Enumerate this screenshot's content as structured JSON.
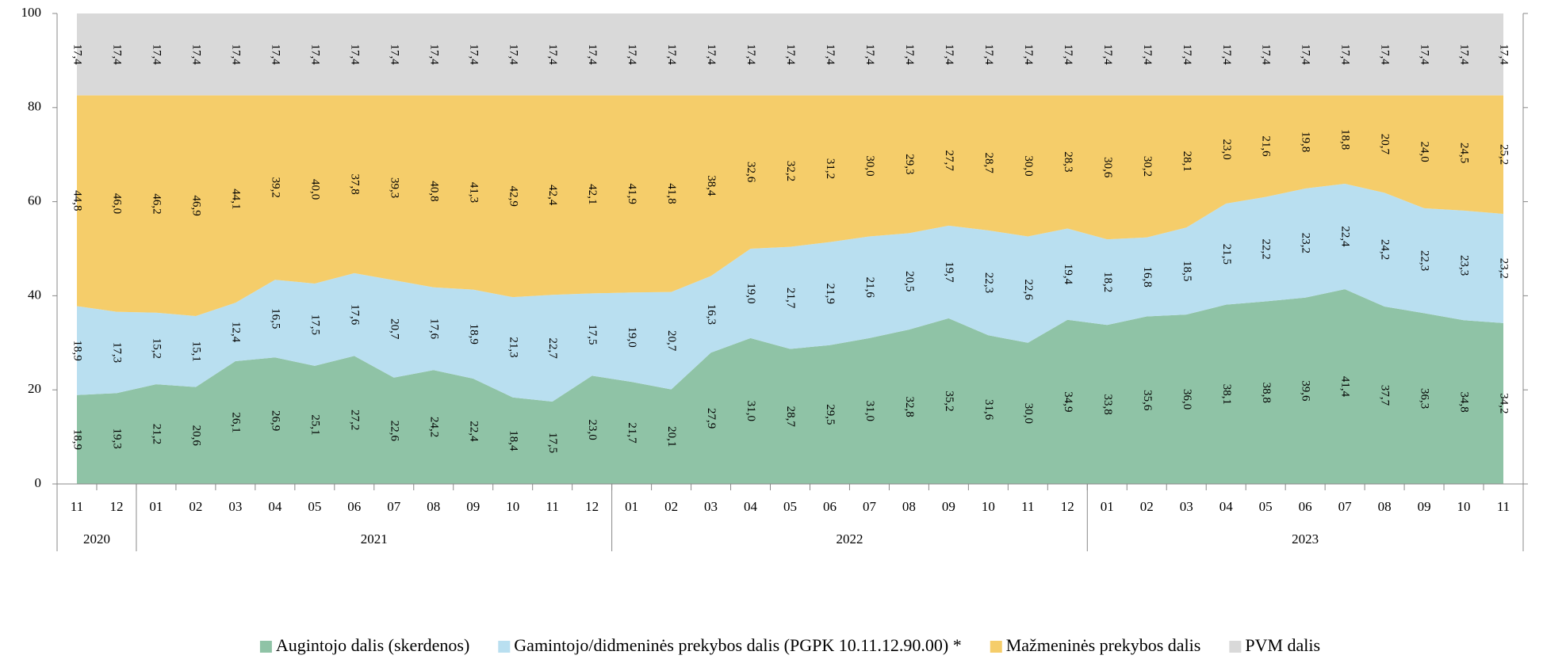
{
  "chart_data": {
    "type": "stacked_area",
    "categories": [
      "11",
      "12",
      "01",
      "02",
      "03",
      "04",
      "05",
      "06",
      "07",
      "08",
      "09",
      "10",
      "11",
      "12",
      "01",
      "02",
      "03",
      "04",
      "05",
      "06",
      "07",
      "08",
      "09",
      "10",
      "11",
      "12",
      "01",
      "02",
      "03",
      "04",
      "05",
      "06",
      "07",
      "08",
      "09",
      "10",
      "11"
    ],
    "groups": [
      "2020",
      "2021",
      "2022",
      "2023"
    ],
    "ylim": [
      0,
      100
    ],
    "yticks": [
      0,
      20,
      40,
      60,
      80,
      100
    ],
    "series": [
      {
        "name": "Augintojo dalis (skerdenos)",
        "color": "#8fc3a6",
        "values": [
          18.9,
          19.3,
          21.2,
          20.6,
          26.1,
          26.9,
          25.1,
          27.2,
          22.6,
          24.2,
          22.4,
          18.4,
          17.5,
          23.0,
          21.7,
          20.1,
          27.9,
          31.0,
          28.7,
          29.5,
          31.0,
          32.8,
          35.2,
          31.6,
          30.0,
          34.9,
          33.8,
          35.6,
          36.0,
          38.1,
          38.8,
          39.6,
          41.4,
          37.7,
          36.3,
          34.8,
          34.2
        ],
        "value_labels": [
          "18,9",
          "19,3",
          "21,2",
          "20,6",
          "26,1",
          "26,9",
          "25,1",
          "27,2",
          "22,6",
          "24,2",
          "22,4",
          "18,4",
          "17,5",
          "23,0",
          "21,7",
          "20,1",
          "27,9",
          "31,0",
          "28,7",
          "29,5",
          "31,0",
          "32,8",
          "35,2",
          "31,6",
          "30,0",
          "34,9",
          "33,8",
          "35,6",
          "36,0",
          "38,1",
          "38,8",
          "39,6",
          "41,4",
          "37,7",
          "36,3",
          "34,8",
          "34,2"
        ]
      },
      {
        "name": "Gamintojo/didmeninės prekybos dalis (PGPK 10.11.12.90.00) *",
        "color": "#b9dff0",
        "values": [
          18.9,
          17.3,
          15.2,
          15.1,
          12.4,
          16.5,
          17.5,
          17.6,
          20.7,
          17.6,
          18.9,
          21.3,
          22.7,
          17.5,
          19.0,
          20.7,
          16.3,
          19.0,
          21.7,
          21.9,
          21.6,
          20.5,
          19.7,
          22.3,
          22.6,
          19.4,
          18.2,
          16.8,
          18.5,
          21.5,
          22.2,
          23.2,
          22.4,
          24.2,
          22.3,
          23.3,
          23.2
        ],
        "value_labels": [
          "18,9",
          "17,3",
          "15,2",
          "15,1",
          "12,4",
          "16,5",
          "17,5",
          "17,6",
          "20,7",
          "17,6",
          "18,9",
          "21,3",
          "22,7",
          "17,5",
          "19,0",
          "20,7",
          "16,3",
          "19,0",
          "21,7",
          "21,9",
          "21,6",
          "20,5",
          "19,7",
          "22,3",
          "22,6",
          "19,4",
          "18,2",
          "16,8",
          "18,5",
          "21,5",
          "22,2",
          "23,2",
          "22,4",
          "24,2",
          "22,3",
          "23,3",
          "23,2"
        ]
      },
      {
        "name": "Mažmeninės prekybos dalis",
        "color": "#f5cd6a",
        "values": [
          44.8,
          46.0,
          46.2,
          46.9,
          44.1,
          39.2,
          40.0,
          37.8,
          39.3,
          40.8,
          41.3,
          42.9,
          42.4,
          42.1,
          41.9,
          41.8,
          38.4,
          32.6,
          32.2,
          31.2,
          30.0,
          29.3,
          27.7,
          28.7,
          30.0,
          28.3,
          30.6,
          30.2,
          28.1,
          23.0,
          21.6,
          19.8,
          18.8,
          20.7,
          24.0,
          24.5,
          25.2
        ],
        "value_labels": [
          "44,8",
          "46,0",
          "46,2",
          "46,9",
          "44,1",
          "39,2",
          "40,0",
          "37,8",
          "39,3",
          "40,8",
          "41,3",
          "42,9",
          "42,4",
          "42,1",
          "41,9",
          "41,8",
          "38,4",
          "32,6",
          "32,2",
          "31,2",
          "30,0",
          "29,3",
          "27,7",
          "28,7",
          "30,0",
          "28,3",
          "30,6",
          "30,2",
          "28,1",
          "23,0",
          "21,6",
          "19,8",
          "18,8",
          "20,7",
          "24,0",
          "24,5",
          "25,2"
        ]
      },
      {
        "name": "PVM dalis",
        "color": "#d9d9d9",
        "values": [
          17.4,
          17.4,
          17.4,
          17.4,
          17.4,
          17.4,
          17.4,
          17.4,
          17.4,
          17.4,
          17.4,
          17.4,
          17.4,
          17.4,
          17.4,
          17.4,
          17.4,
          17.4,
          17.4,
          17.4,
          17.4,
          17.4,
          17.4,
          17.4,
          17.4,
          17.4,
          17.4,
          17.4,
          17.4,
          17.4,
          17.4,
          17.4,
          17.4,
          17.4,
          17.4,
          17.4,
          17.4
        ],
        "value_labels": [
          "17,4",
          "17,4",
          "17,4",
          "17,4",
          "17,4",
          "17,4",
          "17,4",
          "17,4",
          "17,4",
          "17,4",
          "17,4",
          "17,4",
          "17,4",
          "17,4",
          "17,4",
          "17,4",
          "17,4",
          "17,4",
          "17,4",
          "17,4",
          "17,4",
          "17,4",
          "17,4",
          "17,4",
          "17,4",
          "17,4",
          "17,4",
          "17,4",
          "17,4",
          "17,4",
          "17,4",
          "17,4",
          "17,4",
          "17,4",
          "17,4",
          "17,4",
          "17,4"
        ]
      }
    ]
  }
}
